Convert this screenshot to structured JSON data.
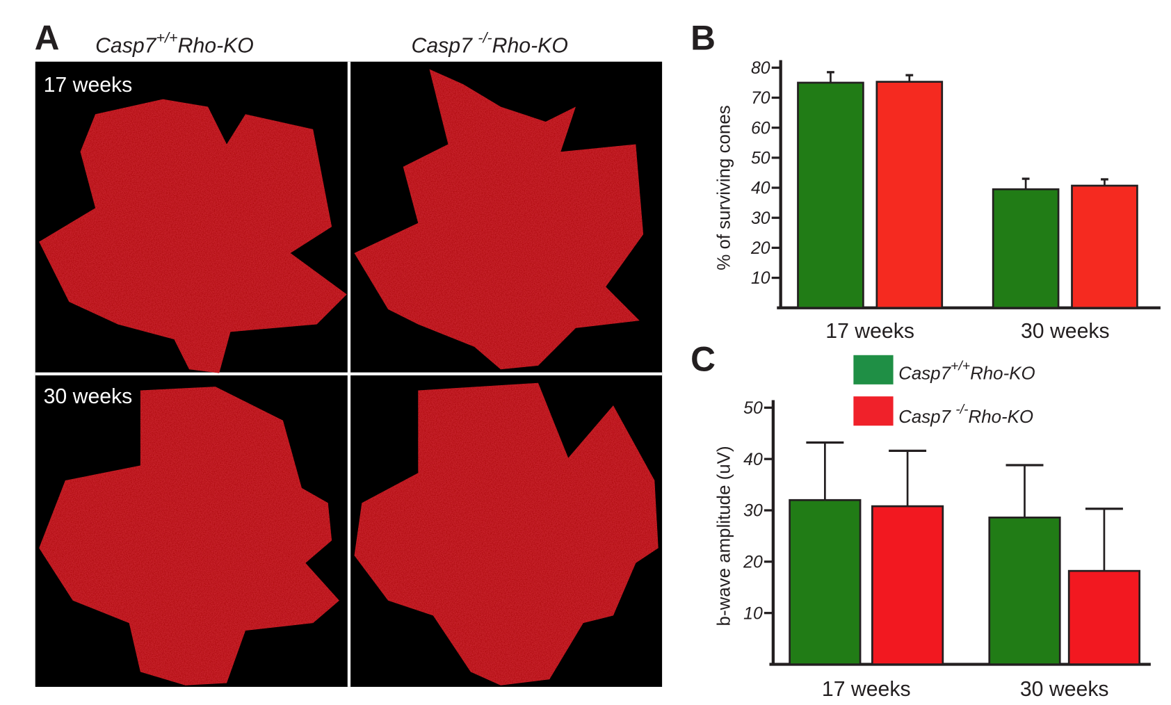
{
  "panel_labels": {
    "a": "A",
    "b": "B",
    "c": "C"
  },
  "panel_a": {
    "columns": [
      {
        "main": "Casp7",
        "sup": "+/+",
        "suffix": "Rho-KO"
      },
      {
        "main": "Casp7 ",
        "sup": "-/-",
        "suffix": "Rho-KO"
      }
    ],
    "rows": [
      "17 weeks",
      "30 weeks"
    ],
    "image_color": "#c8141a"
  },
  "legend": [
    {
      "main": "Casp7",
      "sup": "+/+",
      "suffix": "Rho-KO",
      "color": "#1f8f45"
    },
    {
      "main": "Casp7 ",
      "sup": "-/-",
      "suffix": "Rho-KO",
      "color": "#f0212a"
    }
  ],
  "chart_data": [
    {
      "type": "bar",
      "panel": "B",
      "ylabel": "% of surviving cones",
      "categories": [
        "17 weeks",
        "30 weeks"
      ],
      "yticks": [
        10,
        20,
        30,
        40,
        50,
        60,
        70,
        80
      ],
      "ylim": [
        0,
        80
      ],
      "grid": false,
      "series": [
        {
          "name": "Casp7+/+Rho-KO",
          "color": "#217c16",
          "values": [
            75,
            39.5
          ],
          "error_upper": [
            78.5,
            43
          ]
        },
        {
          "name": "Casp7-/-Rho-KO",
          "color": "#f52a20",
          "values": [
            75.3,
            40.7
          ],
          "error_upper": [
            77.5,
            42.8
          ]
        }
      ]
    },
    {
      "type": "bar",
      "panel": "C",
      "ylabel": "b-wave amplitude (uV)",
      "categories": [
        "17 weeks",
        "30 weeks"
      ],
      "yticks": [
        10,
        20,
        30,
        40,
        50
      ],
      "ylim": [
        0,
        50
      ],
      "grid": false,
      "legend_position": "top-right",
      "series": [
        {
          "name": "Casp7+/+Rho-KO",
          "color": "#217c16",
          "values": [
            32,
            28.6
          ],
          "error_upper": [
            43.2,
            38.8
          ]
        },
        {
          "name": "Casp7-/-Rho-KO",
          "color": "#f21820",
          "values": [
            30.8,
            18.2
          ],
          "error_upper": [
            41.6,
            30.3
          ]
        }
      ]
    }
  ]
}
